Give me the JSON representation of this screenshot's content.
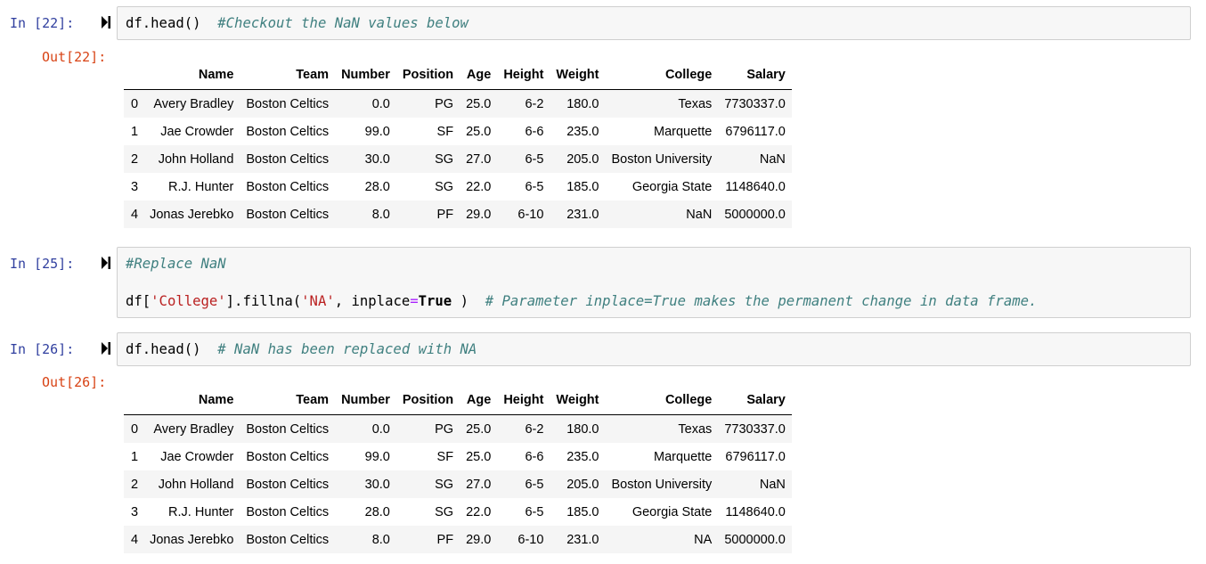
{
  "cells": [
    {
      "in_prompt": "In [22]:",
      "code": {
        "code": "df.head()",
        "comment": "#Checkout the NaN values below"
      },
      "out_prompt": "Out[22]:"
    },
    {
      "in_prompt": "In [25]:",
      "code": {
        "line1_comment": "#Replace NaN",
        "line2_a": "df[",
        "line2_str1": "'College'",
        "line2_b": "].fillna(",
        "line2_str2": "'NA'",
        "line2_c": ", inplace",
        "line2_op": "=",
        "line2_true": "True",
        "line2_d": " )  ",
        "line2_comment": "# Parameter inplace=True makes the permanent change in data frame."
      }
    },
    {
      "in_prompt": "In [26]:",
      "code": {
        "code": "df.head()",
        "comment": "# NaN has been replaced with NA"
      },
      "out_prompt": "Out[26]:"
    }
  ],
  "tables": [
    {
      "columns": [
        "",
        "Name",
        "Team",
        "Number",
        "Position",
        "Age",
        "Height",
        "Weight",
        "College",
        "Salary"
      ],
      "rows": [
        [
          "0",
          "Avery Bradley",
          "Boston Celtics",
          "0.0",
          "PG",
          "25.0",
          "6-2",
          "180.0",
          "Texas",
          "7730337.0"
        ],
        [
          "1",
          "Jae Crowder",
          "Boston Celtics",
          "99.0",
          "SF",
          "25.0",
          "6-6",
          "235.0",
          "Marquette",
          "6796117.0"
        ],
        [
          "2",
          "John Holland",
          "Boston Celtics",
          "30.0",
          "SG",
          "27.0",
          "6-5",
          "205.0",
          "Boston University",
          "NaN"
        ],
        [
          "3",
          "R.J. Hunter",
          "Boston Celtics",
          "28.0",
          "SG",
          "22.0",
          "6-5",
          "185.0",
          "Georgia State",
          "1148640.0"
        ],
        [
          "4",
          "Jonas Jerebko",
          "Boston Celtics",
          "8.0",
          "PF",
          "29.0",
          "6-10",
          "231.0",
          "NaN",
          "5000000.0"
        ]
      ]
    },
    {
      "columns": [
        "",
        "Name",
        "Team",
        "Number",
        "Position",
        "Age",
        "Height",
        "Weight",
        "College",
        "Salary"
      ],
      "rows": [
        [
          "0",
          "Avery Bradley",
          "Boston Celtics",
          "0.0",
          "PG",
          "25.0",
          "6-2",
          "180.0",
          "Texas",
          "7730337.0"
        ],
        [
          "1",
          "Jae Crowder",
          "Boston Celtics",
          "99.0",
          "SF",
          "25.0",
          "6-6",
          "235.0",
          "Marquette",
          "6796117.0"
        ],
        [
          "2",
          "John Holland",
          "Boston Celtics",
          "30.0",
          "SG",
          "27.0",
          "6-5",
          "205.0",
          "Boston University",
          "NaN"
        ],
        [
          "3",
          "R.J. Hunter",
          "Boston Celtics",
          "28.0",
          "SG",
          "22.0",
          "6-5",
          "185.0",
          "Georgia State",
          "1148640.0"
        ],
        [
          "4",
          "Jonas Jerebko",
          "Boston Celtics",
          "8.0",
          "PF",
          "29.0",
          "6-10",
          "231.0",
          "NA",
          "5000000.0"
        ]
      ]
    }
  ],
  "icons": {
    "run": "run-cell-icon"
  }
}
